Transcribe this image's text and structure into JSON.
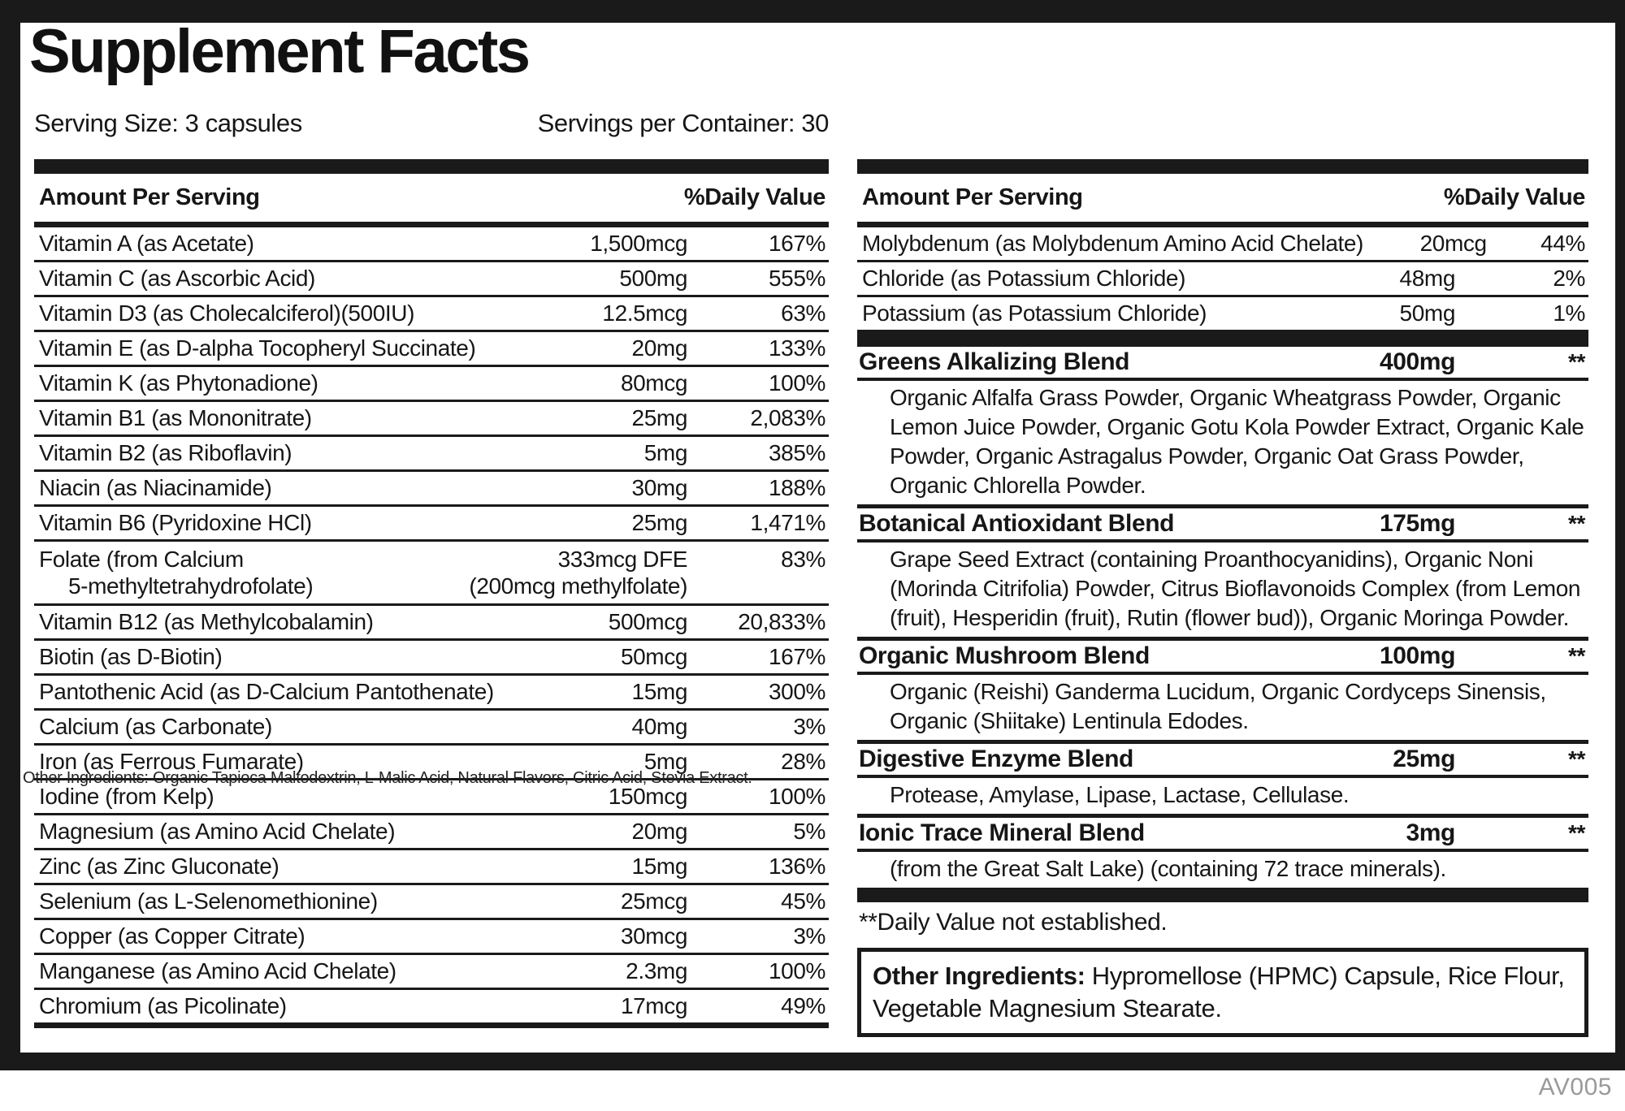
{
  "label": {
    "title": "Supplement Facts",
    "serving_size": "Serving Size: 3 capsules",
    "servings_per_container": "Servings per Container: 30",
    "dv_note": "**Daily Value not established.",
    "footer_code": "AV005",
    "overlay_text": "Other Ingredients: Organic Tapioca Maltodextrin, L-Malic Acid, Natural Flavors, Citric Acid, Stevia Extract.",
    "other_ingredients": {
      "label": "Other Ingredients:",
      "text": " Hypromellose (HPMC) Capsule, Rice Flour, Vegetable Magnesium Stearate."
    }
  },
  "left_table": {
    "header_amount": "Amount Per Serving",
    "header_dv": "%Daily Value",
    "rows": [
      {
        "name": "Vitamin A (as Acetate)",
        "amount": "1,500mcg",
        "dv": "167%"
      },
      {
        "name": "Vitamin C (as Ascorbic Acid)",
        "amount": "500mg",
        "dv": "555%"
      },
      {
        "name": "Vitamin D3 (as Cholecalciferol)(500IU)",
        "amount": "12.5mcg",
        "dv": "63%"
      },
      {
        "name": "Vitamin E (as D-alpha Tocopheryl Succinate)",
        "amount": "20mg",
        "dv": "133%"
      },
      {
        "name": "Vitamin K (as Phytonadione)",
        "amount": "80mcg",
        "dv": "100%"
      },
      {
        "name": "Vitamin B1 (as Mononitrate)",
        "amount": "25mg",
        "dv": "2,083%"
      },
      {
        "name": "Vitamin B2 (as Riboflavin)",
        "amount": "5mg",
        "dv": "385%"
      },
      {
        "name": "Niacin (as Niacinamide)",
        "amount": "30mg",
        "dv": "188%"
      },
      {
        "name": "Vitamin B6 (Pyridoxine HCl)",
        "amount": "25mg",
        "dv": "1,471%"
      },
      {
        "name": "Folate (from Calcium",
        "name2": "5-methyltetrahydrofolate)",
        "amount": "333mcg DFE",
        "amount2": "(200mcg methylfolate)",
        "dv": "83%"
      },
      {
        "name": "Vitamin B12 (as Methylcobalamin)",
        "amount": "500mcg",
        "dv": "20,833%"
      },
      {
        "name": "Biotin (as D-Biotin)",
        "amount": "50mcg",
        "dv": "167%"
      },
      {
        "name": "Pantothenic Acid (as D-Calcium Pantothenate)",
        "amount": "15mg",
        "dv": "300%"
      },
      {
        "name": "Calcium (as Carbonate)",
        "amount": "40mg",
        "dv": "3%"
      },
      {
        "name": "Iron (as Ferrous Fumarate)",
        "amount": "5mg",
        "dv": "28%"
      },
      {
        "name": "Iodine (from Kelp)",
        "amount": "150mcg",
        "dv": "100%"
      },
      {
        "name": "Magnesium (as Amino Acid Chelate)",
        "amount": "20mg",
        "dv": "5%"
      },
      {
        "name": "Zinc (as Zinc Gluconate)",
        "amount": "15mg",
        "dv": "136%"
      },
      {
        "name": "Selenium (as L-Selenomethionine)",
        "amount": "25mcg",
        "dv": "45%"
      },
      {
        "name": "Copper (as Copper Citrate)",
        "amount": "30mcg",
        "dv": "3%"
      },
      {
        "name": "Manganese (as Amino Acid Chelate)",
        "amount": "2.3mg",
        "dv": "100%"
      },
      {
        "name": "Chromium (as Picolinate)",
        "amount": "17mcg",
        "dv": "49%"
      }
    ]
  },
  "right_table": {
    "header_amount": "Amount Per Serving",
    "header_dv": "%Daily Value",
    "rows": [
      {
        "name": "Molybdenum (as Molybdenum Amino Acid Chelate)",
        "amount": "20mcg",
        "dv": "44%"
      },
      {
        "name": "Chloride (as Potassium Chloride)",
        "amount": "48mg",
        "dv": "2%"
      },
      {
        "name": "Potassium (as Potassium Chloride)",
        "amount": "50mg",
        "dv": "1%"
      }
    ],
    "blends": [
      {
        "name": "Greens Alkalizing Blend",
        "amount": "400mg",
        "dv": "**",
        "desc": "Organic Alfalfa Grass Powder, Organic Wheatgrass Powder, Organic Lemon Juice Powder, Organic Gotu Kola Powder Extract, Organic Kale Powder, Organic Astragalus Powder, Organic Oat Grass Powder, Organic Chlorella Powder."
      },
      {
        "name": "Botanical Antioxidant Blend",
        "amount": "175mg",
        "dv": "**",
        "desc": "Grape Seed Extract (containing Proanthocyanidins), Organic Noni (Morinda Citrifolia) Powder, Citrus Bioflavonoids Complex (from Lemon (fruit), Hesperidin (fruit), Rutin (flower bud)), Organic Moringa Powder."
      },
      {
        "name": "Organic Mushroom Blend",
        "amount": "100mg",
        "dv": "**",
        "desc": "Organic (Reishi) Ganderma Lucidum, Organic Cordyceps Sinensis, Organic (Shiitake) Lentinula Edodes."
      },
      {
        "name": "Digestive Enzyme Blend",
        "amount": "25mg",
        "dv": "**",
        "desc": "Protease, Amylase, Lipase, Lactase, Cellulase."
      },
      {
        "name": "Ionic Trace Mineral Blend",
        "amount": "3mg",
        "dv": "**",
        "desc": "(from the Great Salt Lake) (containing 72 trace minerals)."
      }
    ]
  }
}
